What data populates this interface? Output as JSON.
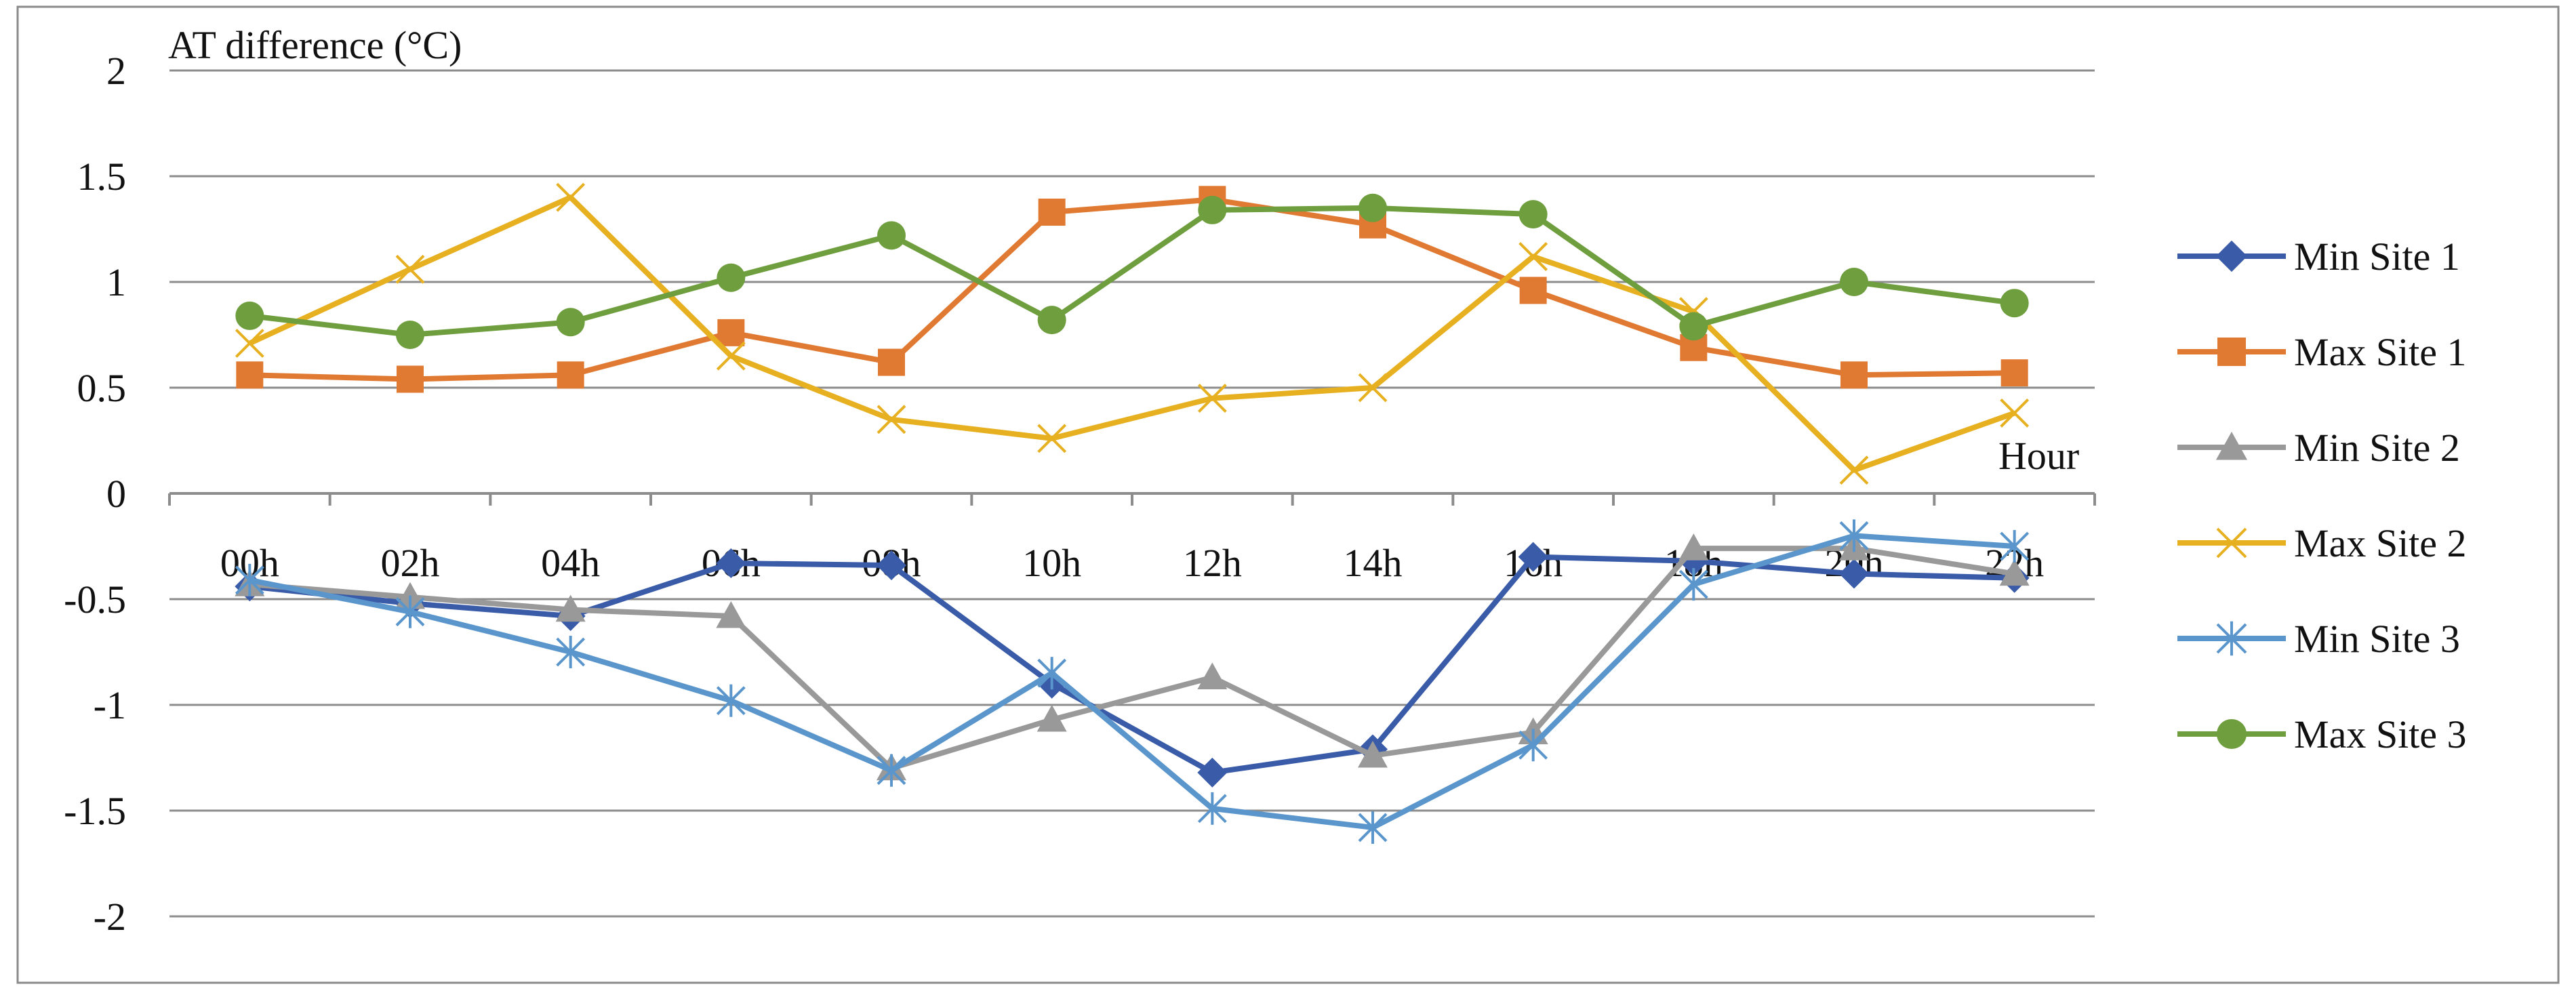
{
  "chart_data": {
    "type": "line",
    "ylabel": "AT difference (°C)",
    "xlabel": "Hour",
    "categories": [
      "00h",
      "02h",
      "04h",
      "06h",
      "08h",
      "10h",
      "12h",
      "14h",
      "16h",
      "18h",
      "20h",
      "22h"
    ],
    "ylim": [
      -2,
      2
    ],
    "yticks": [
      "2",
      "1.5",
      "1",
      "0.5",
      "0",
      "-0.5",
      "-1",
      "-1.5",
      "-2"
    ],
    "ytick_values": [
      2,
      1.5,
      1,
      0.5,
      0,
      -0.5,
      -1,
      -1.5,
      -2
    ],
    "grid": true,
    "legend_position": "right",
    "series": [
      {
        "name": "Min Site 1",
        "color": "#3A5BA8",
        "marker": "diamond",
        "values": [
          -0.44,
          -0.52,
          -0.58,
          -0.33,
          -0.34,
          -0.9,
          -1.32,
          -1.21,
          -0.3,
          -0.32,
          -0.38,
          -0.4
        ]
      },
      {
        "name": "Max Site 1",
        "color": "#E07A33",
        "marker": "square",
        "values": [
          0.56,
          0.54,
          0.56,
          0.76,
          0.62,
          1.33,
          1.39,
          1.27,
          0.96,
          0.69,
          0.56,
          0.57
        ]
      },
      {
        "name": "Min Site 2",
        "color": "#999999",
        "marker": "triangle",
        "values": [
          -0.43,
          -0.49,
          -0.55,
          -0.58,
          -1.3,
          -1.07,
          -0.87,
          -1.24,
          -1.13,
          -0.26,
          -0.26,
          -0.38
        ]
      },
      {
        "name": "Max Site 2",
        "color": "#E7B020",
        "marker": "x",
        "values": [
          0.71,
          1.06,
          1.4,
          0.65,
          0.35,
          0.26,
          0.45,
          0.5,
          1.12,
          0.86,
          0.11,
          0.38
        ]
      },
      {
        "name": "Min Site 3",
        "color": "#5A96CC",
        "marker": "star",
        "values": [
          -0.41,
          -0.56,
          -0.75,
          -0.98,
          -1.31,
          -0.85,
          -1.49,
          -1.58,
          -1.19,
          -0.43,
          -0.2,
          -0.25
        ]
      },
      {
        "name": "Max Site 3",
        "color": "#6E9E3E",
        "marker": "circle",
        "values": [
          0.84,
          0.75,
          0.81,
          1.02,
          1.22,
          0.82,
          1.34,
          1.35,
          1.32,
          0.79,
          1.0,
          0.9
        ]
      }
    ]
  }
}
